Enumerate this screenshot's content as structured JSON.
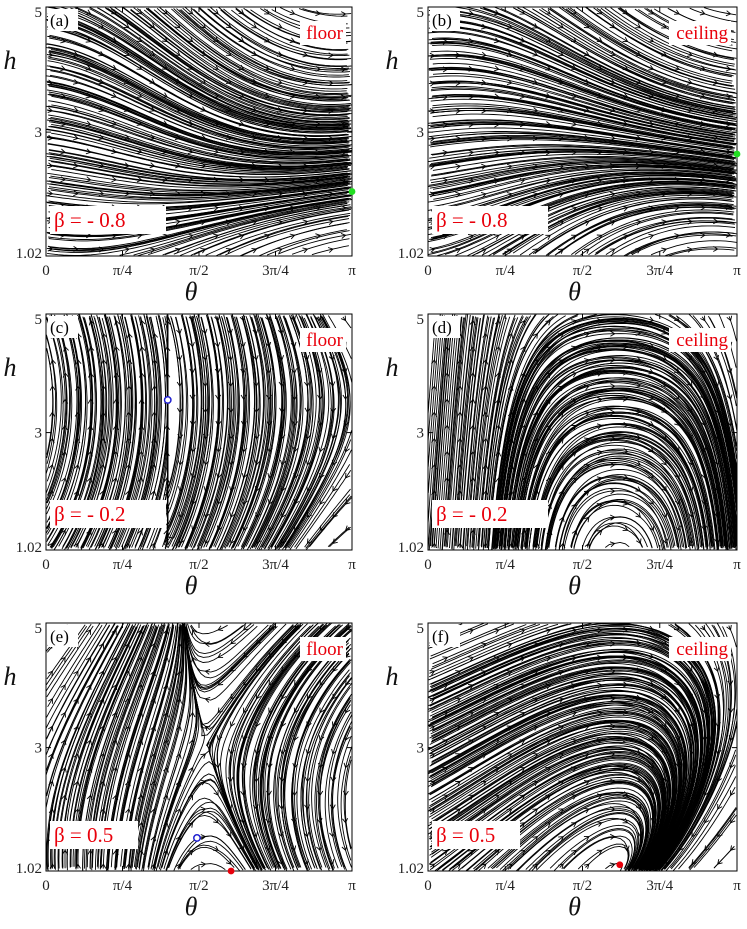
{
  "figure": {
    "colors": {
      "stream": "#000000",
      "annotation": "#e8000b",
      "stable_node": "#22dd22",
      "stable_focus": "#e8000b",
      "saddle": "#1f1fd0"
    }
  },
  "chart_data": [
    {
      "type": "streamplot",
      "panel_label": "(a)",
      "surface": "floor",
      "beta_label": "β = - 0.8",
      "beta": -0.8,
      "xlabel": "θ",
      "ylabel": "h",
      "xlim": [
        0,
        3.1416
      ],
      "ylim": [
        1.02,
        5
      ],
      "x_ticks": [
        "0",
        "π/4",
        "π/2",
        "3π/4",
        "π"
      ],
      "y_ticks": [
        "1.02",
        "3",
        "5"
      ],
      "fixed_points": [
        {
          "theta": 3.1416,
          "h": 2.05,
          "kind": "stable_node"
        }
      ]
    },
    {
      "type": "streamplot",
      "panel_label": "(b)",
      "surface": "ceiling",
      "beta_label": "β = - 0.8",
      "beta": -0.8,
      "xlabel": "θ",
      "ylabel": "h",
      "xlim": [
        0,
        3.1416
      ],
      "ylim": [
        1.02,
        5
      ],
      "x_ticks": [
        "0",
        "π/4",
        "π/2",
        "3π/4",
        "π"
      ],
      "y_ticks": [
        "1.02",
        "3",
        "5"
      ],
      "fixed_points": [
        {
          "theta": 3.1416,
          "h": 2.65,
          "kind": "stable_node"
        }
      ]
    },
    {
      "type": "streamplot",
      "panel_label": "(c)",
      "surface": "floor",
      "beta_label": "β = - 0.2",
      "beta": -0.2,
      "xlabel": "θ",
      "ylabel": "h",
      "xlim": [
        0,
        3.1416
      ],
      "ylim": [
        1.02,
        5
      ],
      "x_ticks": [
        "0",
        "π/4",
        "π/2",
        "3π/4",
        "π"
      ],
      "y_ticks": [
        "1.02",
        "3",
        "5"
      ],
      "fixed_points": [
        {
          "theta": 1.25,
          "h": 3.55,
          "kind": "saddle"
        }
      ]
    },
    {
      "type": "streamplot",
      "panel_label": "(d)",
      "surface": "ceiling",
      "beta_label": "β = - 0.2",
      "beta": -0.2,
      "xlabel": "θ",
      "ylabel": "h",
      "xlim": [
        0,
        3.1416
      ],
      "ylim": [
        1.02,
        5
      ],
      "x_ticks": [
        "0",
        "π/4",
        "π/2",
        "3π/4",
        "π"
      ],
      "y_ticks": [
        "1.02",
        "3",
        "5"
      ],
      "fixed_points": []
    },
    {
      "type": "streamplot",
      "panel_label": "(e)",
      "surface": "floor",
      "beta_label": "β = 0.5",
      "beta": 0.5,
      "xlabel": "θ",
      "ylabel": "h",
      "xlim": [
        0,
        3.1416
      ],
      "ylim": [
        1.02,
        5
      ],
      "x_ticks": [
        "0",
        "π/4",
        "π/2",
        "3π/4",
        "π"
      ],
      "y_ticks": [
        "1.02",
        "3",
        "5"
      ],
      "fixed_points": [
        {
          "theta": 1.55,
          "h": 1.55,
          "kind": "saddle"
        },
        {
          "theta": 1.9,
          "h": 1.02,
          "kind": "stable_focus"
        }
      ]
    },
    {
      "type": "streamplot",
      "panel_label": "(f)",
      "surface": "ceiling",
      "beta_label": "β = 0.5",
      "beta": 0.5,
      "xlabel": "θ",
      "ylabel": "h",
      "xlim": [
        0,
        3.1416
      ],
      "ylim": [
        1.02,
        5
      ],
      "x_ticks": [
        "0",
        "π/4",
        "π/2",
        "3π/4",
        "π"
      ],
      "y_ticks": [
        "1.02",
        "3",
        "5"
      ],
      "fixed_points": [
        {
          "theta": 1.95,
          "h": 1.12,
          "kind": "stable_focus"
        }
      ]
    }
  ]
}
